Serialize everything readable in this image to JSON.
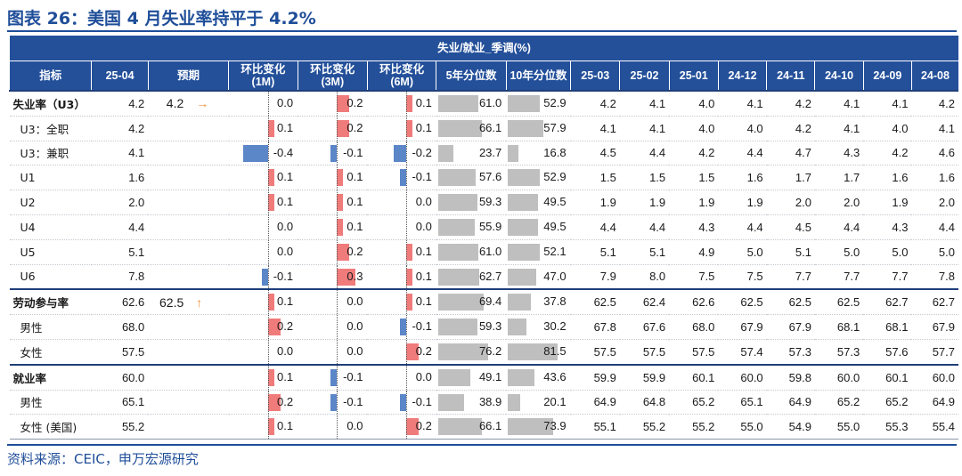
{
  "title": "图表 26：美国 4 月失业率持平于 4.2%",
  "band_title": "失业/就业_季调(%)",
  "headers": [
    "指标",
    "25-04",
    "预期",
    "环比变化\n(1M)",
    "环比变化\n(3M)",
    "环比变化\n(6M)",
    "5年分位数",
    "10年分位数",
    "25-03",
    "25-02",
    "25-01",
    "24-12",
    "24-11",
    "24-10",
    "24-09",
    "24-08"
  ],
  "source": "资料来源：CEIC，申万宏源研究",
  "colors": {
    "header_bg": "#24509a",
    "pos_bar": "#f07b7b",
    "neg_bar": "#5b86c8",
    "pct_bar": "#bfbfbf",
    "up_arrow": "#f0903a"
  },
  "chart_data": {
    "type": "table",
    "columns": [
      "指标",
      "25-04",
      "预期",
      "环比变化(1M)",
      "环比变化(3M)",
      "环比变化(6M)",
      "5年分位数",
      "10年分位数",
      "25-03",
      "25-02",
      "25-01",
      "24-12",
      "24-11",
      "24-10",
      "24-09",
      "24-08"
    ],
    "rows": [
      {
        "label": "失业率（U3）",
        "main": true,
        "cur": "4.2",
        "exp": "4.2",
        "arrow": "→",
        "c1": "0.0",
        "c3": "0.2",
        "c6": "0.1",
        "p5": "61.0",
        "p10": "52.9",
        "hist": [
          "4.2",
          "4.1",
          "4.0",
          "4.1",
          "4.2",
          "4.1",
          "4.1",
          "4.2"
        ]
      },
      {
        "label": "U3：全职",
        "main": false,
        "cur": "4.2",
        "exp": "",
        "arrow": "",
        "c1": "0.1",
        "c3": "0.2",
        "c6": "0.1",
        "p5": "66.1",
        "p10": "57.9",
        "hist": [
          "4.1",
          "4.1",
          "4.0",
          "4.0",
          "4.2",
          "4.1",
          "4.0",
          "4.1"
        ]
      },
      {
        "label": "U3：兼职",
        "main": false,
        "cur": "4.1",
        "exp": "",
        "arrow": "",
        "c1": "-0.4",
        "c3": "-0.1",
        "c6": "-0.2",
        "p5": "23.7",
        "p10": "16.8",
        "hist": [
          "4.5",
          "4.4",
          "4.2",
          "4.4",
          "4.7",
          "4.3",
          "4.2",
          "4.6"
        ]
      },
      {
        "label": "U1",
        "main": false,
        "cur": "1.6",
        "exp": "",
        "arrow": "",
        "c1": "0.1",
        "c3": "0.1",
        "c6": "-0.1",
        "p5": "57.6",
        "p10": "52.9",
        "hist": [
          "1.5",
          "1.5",
          "1.5",
          "1.6",
          "1.7",
          "1.7",
          "1.6",
          "1.6"
        ]
      },
      {
        "label": "U2",
        "main": false,
        "cur": "2.0",
        "exp": "",
        "arrow": "",
        "c1": "0.1",
        "c3": "0.1",
        "c6": "0.0",
        "p5": "59.3",
        "p10": "49.5",
        "hist": [
          "1.9",
          "1.9",
          "1.9",
          "1.9",
          "2.0",
          "2.0",
          "1.9",
          "2.0"
        ]
      },
      {
        "label": "U4",
        "main": false,
        "cur": "4.4",
        "exp": "",
        "arrow": "",
        "c1": "0.0",
        "c3": "0.1",
        "c6": "0.0",
        "p5": "55.9",
        "p10": "49.5",
        "hist": [
          "4.4",
          "4.4",
          "4.3",
          "4.4",
          "4.5",
          "4.4",
          "4.3",
          "4.4"
        ]
      },
      {
        "label": "U5",
        "main": false,
        "cur": "5.1",
        "exp": "",
        "arrow": "",
        "c1": "0.0",
        "c3": "0.2",
        "c6": "0.1",
        "p5": "61.0",
        "p10": "52.1",
        "hist": [
          "5.1",
          "5.1",
          "4.9",
          "5.0",
          "5.1",
          "5.0",
          "5.0",
          "5.0"
        ]
      },
      {
        "label": "U6",
        "main": false,
        "cur": "7.8",
        "exp": "",
        "arrow": "",
        "c1": "-0.1",
        "c3": "0.3",
        "c6": "0.1",
        "p5": "62.7",
        "p10": "47.0",
        "hist": [
          "7.9",
          "8.0",
          "7.5",
          "7.5",
          "7.7",
          "7.7",
          "7.7",
          "7.8"
        ]
      },
      {
        "label": "劳动参与率",
        "main": true,
        "cur": "62.6",
        "exp": "62.5",
        "arrow": "↑",
        "c1": "0.1",
        "c3": "0.0",
        "c6": "0.1",
        "p5": "69.4",
        "p10": "37.8",
        "hist": [
          "62.5",
          "62.4",
          "62.6",
          "62.5",
          "62.5",
          "62.5",
          "62.7",
          "62.7"
        ]
      },
      {
        "label": "男性",
        "main": false,
        "cur": "68.0",
        "exp": "",
        "arrow": "",
        "c1": "0.2",
        "c3": "0.0",
        "c6": "-0.1",
        "p5": "59.3",
        "p10": "30.2",
        "hist": [
          "67.8",
          "67.6",
          "68.0",
          "67.9",
          "67.9",
          "68.1",
          "68.1",
          "67.9"
        ]
      },
      {
        "label": "女性",
        "main": false,
        "cur": "57.5",
        "exp": "",
        "arrow": "",
        "c1": "0.0",
        "c3": "0.0",
        "c6": "0.2",
        "p5": "76.2",
        "p10": "81.5",
        "hist": [
          "57.5",
          "57.5",
          "57.5",
          "57.4",
          "57.3",
          "57.3",
          "57.6",
          "57.7"
        ]
      },
      {
        "label": "就业率",
        "main": true,
        "cur": "60.0",
        "exp": "",
        "arrow": "",
        "c1": "0.1",
        "c3": "-0.1",
        "c6": "0.0",
        "p5": "49.1",
        "p10": "43.6",
        "hist": [
          "59.9",
          "59.9",
          "60.1",
          "60.0",
          "59.8",
          "60.0",
          "60.1",
          "60.0"
        ]
      },
      {
        "label": "男性",
        "main": false,
        "cur": "65.1",
        "exp": "",
        "arrow": "",
        "c1": "0.2",
        "c3": "-0.1",
        "c6": "-0.1",
        "p5": "38.9",
        "p10": "20.1",
        "hist": [
          "64.9",
          "64.8",
          "65.2",
          "65.1",
          "64.9",
          "65.2",
          "65.2",
          "64.9"
        ]
      },
      {
        "label": "女性 (美国)",
        "main": false,
        "cur": "55.2",
        "exp": "",
        "arrow": "",
        "c1": "0.1",
        "c3": "0.0",
        "c6": "0.2",
        "p5": "66.1",
        "p10": "73.9",
        "hist": [
          "55.1",
          "55.2",
          "55.2",
          "55.0",
          "54.9",
          "55.0",
          "55.3",
          "55.4"
        ]
      }
    ]
  }
}
